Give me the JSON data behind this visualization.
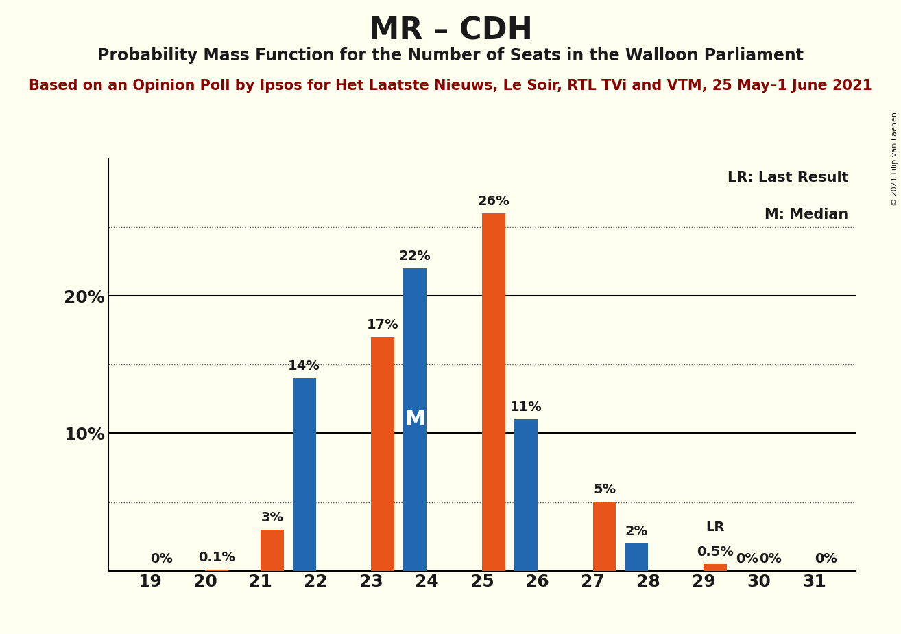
{
  "title": "MR – CDH",
  "subtitle": "Probability Mass Function for the Number of Seats in the Walloon Parliament",
  "source_line": "Based on an Opinion Poll by Ipsos for Het Laatste Nieuws, Le Soir, RTL TVi and VTM, 25 May–1 June 2021",
  "copyright_text": "© 2021 Filip van Laenen",
  "categories": [
    19,
    20,
    21,
    22,
    23,
    24,
    25,
    26,
    27,
    28,
    29,
    30,
    31
  ],
  "blue_values": [
    0.0,
    0.0,
    0.0,
    14.0,
    0.0,
    22.0,
    0.0,
    11.0,
    0.0,
    2.0,
    0.0,
    0.0,
    0.0
  ],
  "orange_values": [
    0.0,
    0.1,
    3.0,
    0.0,
    17.0,
    0.0,
    26.0,
    0.0,
    5.0,
    0.0,
    0.5,
    0.0,
    0.0
  ],
  "blue_labels": [
    "",
    "",
    "",
    "14%",
    "",
    "22%",
    "",
    "11%",
    "",
    "2%",
    "",
    "0%",
    ""
  ],
  "orange_labels": [
    "0%",
    "0.1%",
    "3%",
    "",
    "17%",
    "",
    "26%",
    "",
    "5%",
    "",
    "0.5%",
    "0%",
    "0%"
  ],
  "blue_color": "#2168b0",
  "orange_color": "#e8541a",
  "background_color": "#fffff0",
  "bar_width": 0.42,
  "median_seat": 24,
  "lr_seat": 29,
  "median_label": "M",
  "lr_label": "LR",
  "legend_lr": "LR: Last Result",
  "legend_m": "M: Median",
  "dotted_lines": [
    5,
    15,
    25
  ],
  "solid_lines": [
    10,
    20
  ],
  "ymax": 30,
  "title_color": "#1a1a1a",
  "source_color": "#8b0000",
  "text_color": "#1a1a1a",
  "label_fontsize": 14,
  "tick_fontsize": 18,
  "title_fontsize": 32,
  "subtitle_fontsize": 17,
  "source_fontsize": 15
}
